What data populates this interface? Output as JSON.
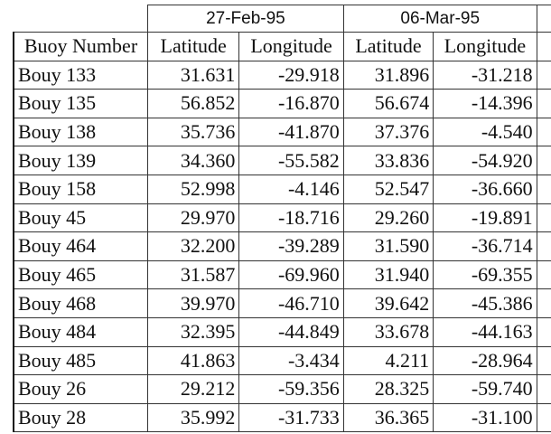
{
  "header": {
    "dates": [
      "27-Feb-95",
      "06-Mar-95"
    ],
    "columns": [
      "Buoy Number",
      "Latitude",
      "Longitude",
      "Latitude",
      "Longitude"
    ]
  },
  "rows": [
    [
      "Bouy 133",
      "31.631",
      "-29.918",
      "31.896",
      "-31.218"
    ],
    [
      "Bouy 135",
      "56.852",
      "-16.870",
      "56.674",
      "-14.396"
    ],
    [
      "Bouy 138",
      "35.736",
      "-41.870",
      "37.376",
      "-4.540"
    ],
    [
      "Bouy 139",
      "34.360",
      "-55.582",
      "33.836",
      "-54.920"
    ],
    [
      "Bouy 158",
      "52.998",
      "-4.146",
      "52.547",
      "-36.660"
    ],
    [
      "Bouy 45",
      "29.970",
      "-18.716",
      "29.260",
      "-19.891"
    ],
    [
      "Bouy 464",
      "32.200",
      "-39.289",
      "31.590",
      "-36.714"
    ],
    [
      "Bouy 465",
      "31.587",
      "-69.960",
      "31.940",
      "-69.355"
    ],
    [
      "Bouy 468",
      "39.970",
      "-46.710",
      "39.642",
      "-45.386"
    ],
    [
      "Bouy 484",
      "32.395",
      "-44.849",
      "33.678",
      "-44.163"
    ],
    [
      "Bouy 485",
      "41.863",
      "-3.434",
      "4.211",
      "-28.964"
    ],
    [
      "Bouy 26",
      "29.212",
      "-59.356",
      "28.325",
      "-59.740"
    ],
    [
      "Bouy 28",
      "35.992",
      "-31.733",
      "36.365",
      "-31.100"
    ]
  ]
}
